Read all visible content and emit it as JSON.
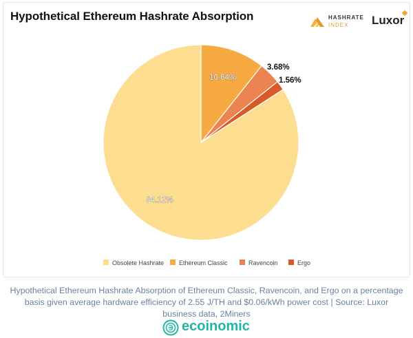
{
  "header": {
    "title": "Hypothetical Ethereum Hashrate Absorption",
    "logo_hashrate_line1": "HASHRATE",
    "logo_hashrate_line2": "INDEX",
    "logo_luxor": "Luxor"
  },
  "chart_data": {
    "type": "pie",
    "title": "Hypothetical Ethereum Hashrate Absorption",
    "start_angle_deg": 0,
    "direction": "clockwise",
    "legend_position": "bottom",
    "slices": [
      {
        "name": "Ethereum Classic",
        "value": 10.64,
        "label": "10.64%",
        "color": "#f7a942",
        "label_style": "inside"
      },
      {
        "name": "Ravencoin",
        "value": 3.68,
        "label": "3.68%",
        "color": "#ec8451",
        "label_style": "outside"
      },
      {
        "name": "Ergo",
        "value": 1.56,
        "label": "1.56%",
        "color": "#d85a28",
        "label_style": "outside"
      },
      {
        "name": "Obsolete Hashrate",
        "value": 84.12,
        "label": "84.12%",
        "color": "#fdde91",
        "label_style": "inside"
      }
    ],
    "legend_order": [
      "Obsolete Hashrate",
      "Ethereum Classic",
      "Ravencoin",
      "Ergo"
    ]
  },
  "caption": "Hypothetical Ethereum Hashrate Absorption of Ethereum Classic, Ravencoin, and Ergo on a percentage basis given average hardware efficiency of 2.55 J/TH and $0.06/kWh power cost | Source: Luxor business data, 2Miners",
  "footer": {
    "brand": "ecoinomic",
    "brand_color": "#1fb6a6"
  }
}
